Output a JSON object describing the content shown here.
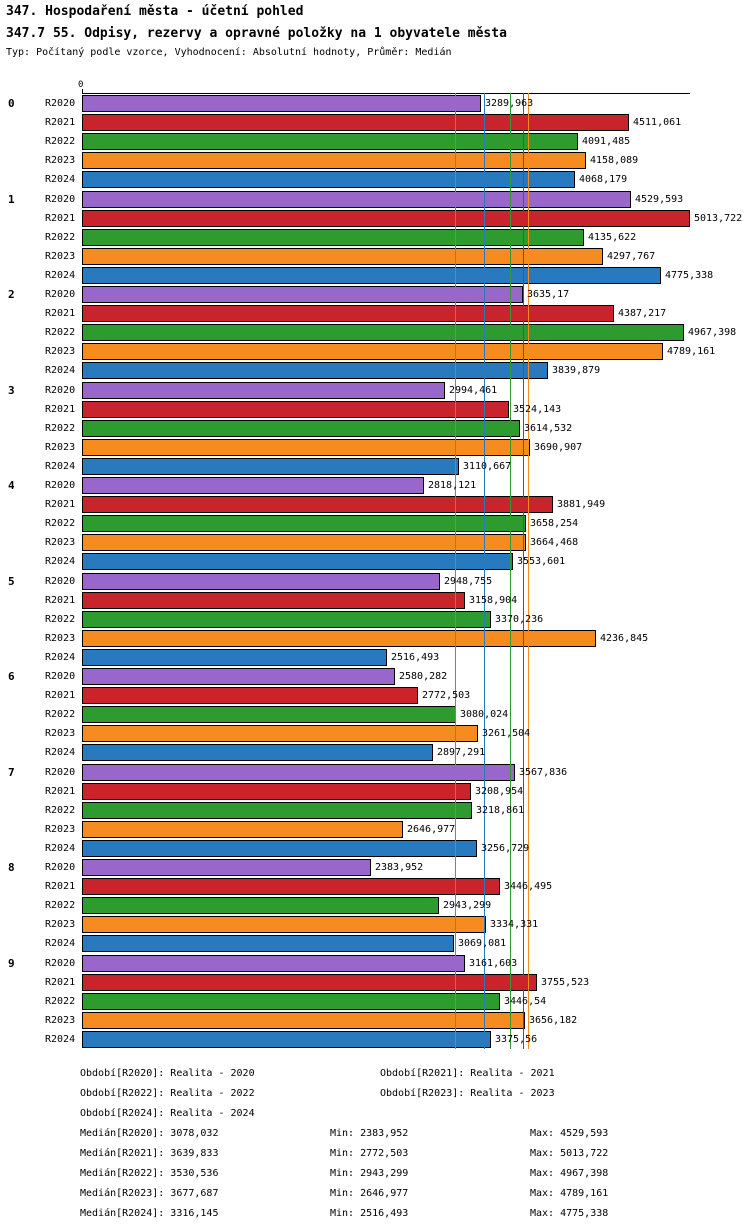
{
  "header": {
    "title": "347. Hospodaření města - účetní pohled",
    "subtitle": "347.7 55. Odpisy, rezervy a opravné položky na 1 obyvatele města",
    "meta": "Typ: Počítaný podle vzorce, Vyhodnocení: Absolutní hodnoty, Průměr: Medián"
  },
  "chart_data": {
    "type": "bar",
    "orientation": "horizontal",
    "axis": {
      "origin_label": "0",
      "xlim": [
        0,
        5013.722
      ],
      "grid": false
    },
    "legend_position": "bottom",
    "groups": [
      "0",
      "1",
      "2",
      "3",
      "4",
      "5",
      "6",
      "7",
      "8",
      "9"
    ],
    "series": [
      {
        "name": "R2020",
        "color": "#9966CC",
        "median": 3078.032,
        "values": [
          3289.963,
          4529.593,
          3635.17,
          2994.461,
          2818.121,
          2948.755,
          2580.282,
          3567.836,
          2383.952,
          3161.603
        ]
      },
      {
        "name": "R2021",
        "color": "#C9242B",
        "median": 3639.833,
        "values": [
          4511.061,
          5013.722,
          4387.217,
          3524.143,
          3881.949,
          3158.904,
          2772.503,
          3208.954,
          3446.495,
          3755.523
        ]
      },
      {
        "name": "R2022",
        "color": "#2E9B2E",
        "median": 3530.536,
        "values": [
          4091.485,
          4135.622,
          4967.398,
          3614.532,
          3658.254,
          3370.236,
          3080.024,
          3218.861,
          2943.299,
          3446.54
        ]
      },
      {
        "name": "R2023",
        "color": "#F68C1F",
        "median": 3677.687,
        "values": [
          4158.089,
          4297.767,
          4789.161,
          3690.907,
          3664.468,
          4236.845,
          3261.504,
          2646.977,
          3334.331,
          3656.182
        ]
      },
      {
        "name": "R2024",
        "color": "#2979BE",
        "median": 3316.145,
        "values": [
          4068.179,
          4775.338,
          3839.879,
          3110.667,
          3553.601,
          2516.493,
          2897.291,
          3256.729,
          3069.081,
          3375.56
        ]
      }
    ],
    "legend": [
      {
        "label": "Období[R2020]:",
        "value": "Realita - 2020"
      },
      {
        "label": "Období[R2021]:",
        "value": "Realita - 2021"
      },
      {
        "label": "Období[R2022]:",
        "value": "Realita - 2022"
      },
      {
        "label": "Období[R2023]:",
        "value": "Realita - 2023"
      },
      {
        "label": "Období[R2024]:",
        "value": "Realita - 2024"
      }
    ],
    "stats": [
      {
        "label": "Medián[R2020]:",
        "median": 3078.032,
        "min_label": "Min:",
        "min": 2383.952,
        "max_label": "Max:",
        "max": 4529.593
      },
      {
        "label": "Medián[R2021]:",
        "median": 3639.833,
        "min_label": "Min:",
        "min": 2772.503,
        "max_label": "Max:",
        "max": 5013.722
      },
      {
        "label": "Medián[R2022]:",
        "median": 3530.536,
        "min_label": "Min:",
        "min": 2943.299,
        "max_label": "Max:",
        "max": 4967.398
      },
      {
        "label": "Medián[R2023]:",
        "median": 3677.687,
        "min_label": "Min:",
        "min": 2646.977,
        "max_label": "Max:",
        "max": 4789.161
      },
      {
        "label": "Medián[R2024]:",
        "median": 3316.145,
        "min_label": "Min:",
        "min": 2516.493,
        "max_label": "Max:",
        "max": 4775.338
      }
    ]
  }
}
